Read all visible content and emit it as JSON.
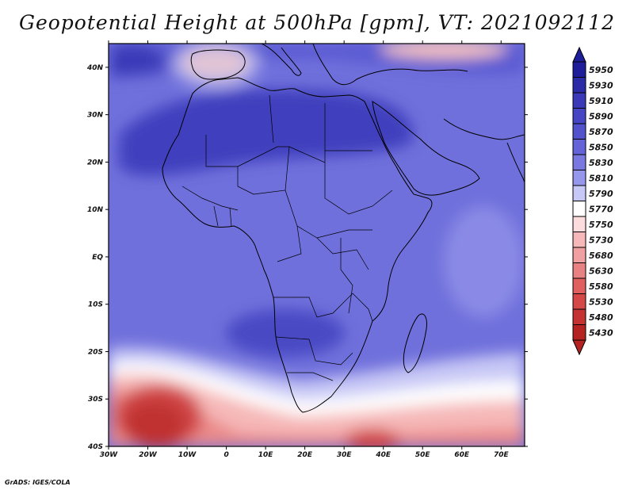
{
  "title": "Geopotential Height at 500hPa [gpm], VT: 2021092112",
  "footer": "GrADS: IGES/COLA",
  "map": {
    "region": "Africa",
    "lon_range": [
      -30,
      76
    ],
    "lat_range": [
      -40,
      45
    ],
    "lat_ticks": [
      "40N",
      "30N",
      "20N",
      "10N",
      "EQ",
      "10S",
      "20S",
      "30S",
      "40S"
    ],
    "lat_values": [
      40,
      30,
      20,
      10,
      0,
      -10,
      -20,
      -30,
      -40
    ],
    "lon_ticks": [
      "30W",
      "20W",
      "10W",
      "0",
      "10E",
      "20E",
      "30E",
      "40E",
      "50E",
      "60E",
      "70E"
    ],
    "lon_values": [
      -30,
      -20,
      -10,
      0,
      10,
      20,
      30,
      40,
      50,
      60,
      70
    ]
  },
  "colorbar": {
    "labels": [
      "5950",
      "5930",
      "5910",
      "5890",
      "5870",
      "5850",
      "5830",
      "5810",
      "5790",
      "5770",
      "5750",
      "5730",
      "5680",
      "5630",
      "5580",
      "5530",
      "5480",
      "5430"
    ],
    "colors": [
      "#1e1e9a",
      "#2b2ba8",
      "#3a3ab8",
      "#4646c4",
      "#5252cc",
      "#6464d8",
      "#7878e0",
      "#9696ea",
      "#c8c8f6",
      "#ffffff",
      "#fcdcdc",
      "#f6b8b8",
      "#f0a0a0",
      "#e88282",
      "#e06060",
      "#d44848",
      "#c43232",
      "#b42222"
    ]
  },
  "colors": {
    "land_outline": "#000000",
    "frame": "#000000"
  }
}
